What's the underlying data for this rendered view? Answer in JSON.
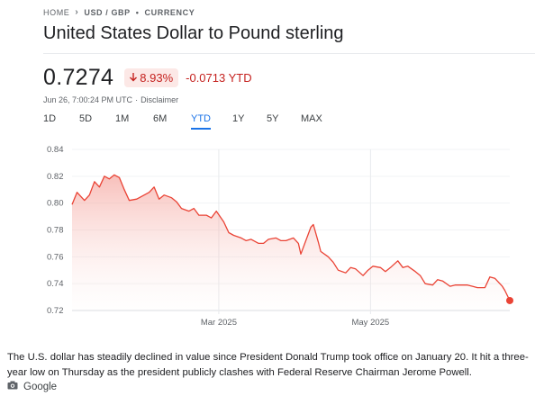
{
  "breadcrumb": {
    "home": "HOME",
    "pair": "USD / GBP",
    "separator": "•",
    "category": "CURRENCY"
  },
  "title": "United States Dollar to Pound sterling",
  "price": "0.7274",
  "change": {
    "percent": "8.93%",
    "absolute": "-0.0713 YTD",
    "color": "#c5221f"
  },
  "meta": {
    "timestamp": "Jun 26, 7:00:24 PM UTC",
    "separator": "·",
    "disclaimer": "Disclaimer"
  },
  "ranges": [
    "1D",
    "5D",
    "1M",
    "6M",
    "YTD",
    "1Y",
    "5Y",
    "MAX"
  ],
  "active_range": "YTD",
  "caption": "The U.S. dollar has steadily declined in value since President Donald Trump took office on January 20. It hit a three-year low on Thursday as the president publicly clashes with Federal Reserve Chairman Jerome Powell.",
  "source": {
    "icon": "camera-icon",
    "label": "Google"
  },
  "chart_data": {
    "type": "area",
    "title": "",
    "xlabel": "",
    "ylabel": "",
    "ylim": [
      0.72,
      0.84
    ],
    "xlim": [
      "2025-01-01",
      "2025-06-26"
    ],
    "yticks": [
      0.84,
      0.82,
      0.8,
      0.78,
      0.76,
      0.74,
      0.72
    ],
    "ytick_labels": [
      "0.84",
      "0.82",
      "0.80",
      "0.78",
      "0.76",
      "0.74",
      "0.72"
    ],
    "xticks": [
      {
        "date": "2025-03-01",
        "label": "Mar 2025"
      },
      {
        "date": "2025-05-01",
        "label": "May 2025"
      }
    ],
    "grid": true,
    "line_color": "#ea4335",
    "series": [
      {
        "values": [
          [
            "2025-01-01",
            0.799
          ],
          [
            "2025-01-03",
            0.808
          ],
          [
            "2025-01-06",
            0.802
          ],
          [
            "2025-01-08",
            0.806
          ],
          [
            "2025-01-10",
            0.816
          ],
          [
            "2025-01-12",
            0.812
          ],
          [
            "2025-01-14",
            0.82
          ],
          [
            "2025-01-16",
            0.818
          ],
          [
            "2025-01-18",
            0.821
          ],
          [
            "2025-01-20",
            0.819
          ],
          [
            "2025-01-22",
            0.81
          ],
          [
            "2025-01-24",
            0.802
          ],
          [
            "2025-01-27",
            0.803
          ],
          [
            "2025-01-30",
            0.806
          ],
          [
            "2025-02-01",
            0.808
          ],
          [
            "2025-02-03",
            0.812
          ],
          [
            "2025-02-05",
            0.803
          ],
          [
            "2025-02-07",
            0.806
          ],
          [
            "2025-02-10",
            0.804
          ],
          [
            "2025-02-12",
            0.801
          ],
          [
            "2025-02-14",
            0.796
          ],
          [
            "2025-02-17",
            0.794
          ],
          [
            "2025-02-19",
            0.796
          ],
          [
            "2025-02-21",
            0.791
          ],
          [
            "2025-02-24",
            0.791
          ],
          [
            "2025-02-26",
            0.789
          ],
          [
            "2025-02-28",
            0.794
          ],
          [
            "2025-03-03",
            0.786
          ],
          [
            "2025-03-05",
            0.778
          ],
          [
            "2025-03-07",
            0.776
          ],
          [
            "2025-03-10",
            0.774
          ],
          [
            "2025-03-12",
            0.772
          ],
          [
            "2025-03-14",
            0.773
          ],
          [
            "2025-03-17",
            0.77
          ],
          [
            "2025-03-19",
            0.77
          ],
          [
            "2025-03-21",
            0.773
          ],
          [
            "2025-03-24",
            0.774
          ],
          [
            "2025-03-26",
            0.772
          ],
          [
            "2025-03-28",
            0.772
          ],
          [
            "2025-03-31",
            0.774
          ],
          [
            "2025-04-02",
            0.77
          ],
          [
            "2025-04-03",
            0.762
          ],
          [
            "2025-04-07",
            0.782
          ],
          [
            "2025-04-08",
            0.784
          ],
          [
            "2025-04-10",
            0.771
          ],
          [
            "2025-04-11",
            0.764
          ],
          [
            "2025-04-14",
            0.76
          ],
          [
            "2025-04-16",
            0.756
          ],
          [
            "2025-04-18",
            0.75
          ],
          [
            "2025-04-21",
            0.748
          ],
          [
            "2025-04-23",
            0.752
          ],
          [
            "2025-04-25",
            0.751
          ],
          [
            "2025-04-28",
            0.746
          ],
          [
            "2025-04-30",
            0.75
          ],
          [
            "2025-05-02",
            0.753
          ],
          [
            "2025-05-05",
            0.752
          ],
          [
            "2025-05-07",
            0.749
          ],
          [
            "2025-05-09",
            0.752
          ],
          [
            "2025-05-12",
            0.757
          ],
          [
            "2025-05-14",
            0.752
          ],
          [
            "2025-05-16",
            0.753
          ],
          [
            "2025-05-19",
            0.749
          ],
          [
            "2025-05-21",
            0.746
          ],
          [
            "2025-05-23",
            0.74
          ],
          [
            "2025-05-26",
            0.739
          ],
          [
            "2025-05-28",
            0.743
          ],
          [
            "2025-05-30",
            0.742
          ],
          [
            "2025-06-02",
            0.738
          ],
          [
            "2025-06-04",
            0.739
          ],
          [
            "2025-06-06",
            0.739
          ],
          [
            "2025-06-09",
            0.739
          ],
          [
            "2025-06-11",
            0.738
          ],
          [
            "2025-06-13",
            0.737
          ],
          [
            "2025-06-16",
            0.737
          ],
          [
            "2025-06-18",
            0.745
          ],
          [
            "2025-06-20",
            0.744
          ],
          [
            "2025-06-23",
            0.738
          ],
          [
            "2025-06-24",
            0.735
          ],
          [
            "2025-06-26",
            0.7274
          ]
        ]
      }
    ]
  }
}
